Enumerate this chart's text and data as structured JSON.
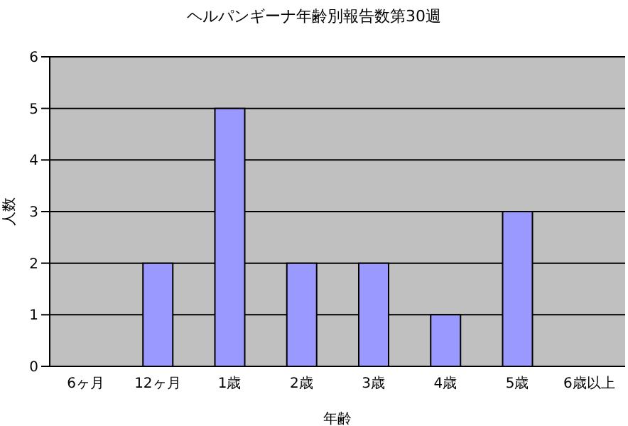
{
  "chart_data": {
    "type": "bar",
    "title": "ヘルパンギーナ年齢別報告数第30週",
    "xlabel": "年齢",
    "ylabel": "人数",
    "categories": [
      "6ヶ月",
      "12ヶ月",
      "1歳",
      "2歳",
      "3歳",
      "4歳",
      "5歳",
      "6歳以上"
    ],
    "values": [
      0,
      2,
      5,
      2,
      2,
      1,
      3,
      0
    ],
    "color": "#9999ff",
    "ylim": [
      0,
      6
    ],
    "yticks": [
      0,
      1,
      2,
      3,
      4,
      5,
      6
    ],
    "grid": "y"
  }
}
